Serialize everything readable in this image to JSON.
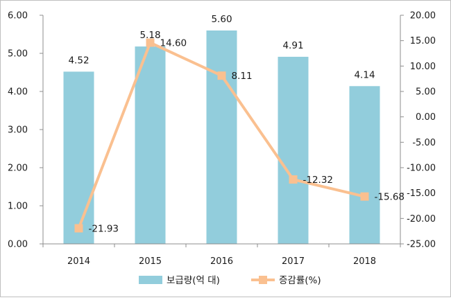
{
  "chart_data": {
    "type": "bar+line",
    "categories": [
      "2014",
      "2015",
      "2016",
      "2017",
      "2018"
    ],
    "series": [
      {
        "name": "보급량(억 대)",
        "type": "bar",
        "axis": "left",
        "values": [
          4.52,
          5.18,
          5.6,
          4.91,
          4.14
        ],
        "labels": [
          "4.52",
          "5.18",
          "5.60",
          "4.91",
          "4.14"
        ],
        "color": "#92CDDC"
      },
      {
        "name": "증감률(%)",
        "type": "line",
        "axis": "right",
        "values": [
          -21.93,
          14.6,
          8.11,
          -12.32,
          -15.68
        ],
        "labels": [
          "-21.93",
          "14.60",
          "8.11",
          "-12.32",
          "-15.68"
        ],
        "color": "#FAC090"
      }
    ],
    "y_left": {
      "min": 0,
      "max": 6,
      "step": 1,
      "ticks": [
        "0.00",
        "1.00",
        "2.00",
        "3.00",
        "4.00",
        "5.00",
        "6.00"
      ]
    },
    "y_right": {
      "min": -25,
      "max": 20,
      "step": 5,
      "ticks": [
        "-25.00",
        "-20.00",
        "-15.00",
        "-10.00",
        "-5.00",
        "0.00",
        "5.00",
        "10.00",
        "15.00",
        "20.00"
      ]
    },
    "grid": false,
    "legend_position": "bottom"
  }
}
